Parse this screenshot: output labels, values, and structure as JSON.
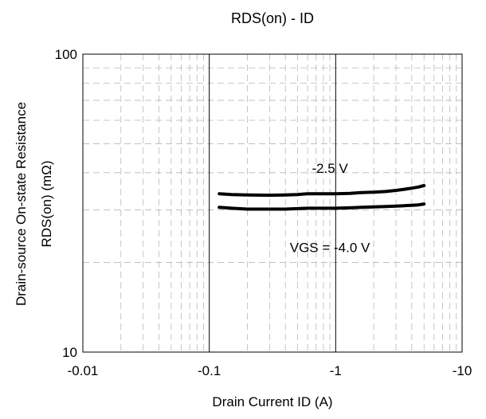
{
  "chart_data": {
    "type": "line",
    "title": "RDS(on) - ID",
    "xlabel": "Drain Current ID (A)",
    "ylabel_line1": "Drain-source On-state Resistance",
    "ylabel_line2": "RDS(on) (mΩ)",
    "x_scale": "log",
    "y_scale": "log",
    "xlim": [
      -0.01,
      -10
    ],
    "ylim": [
      10,
      100
    ],
    "x_ticks": [
      {
        "value": -0.01,
        "label": "-0.01"
      },
      {
        "value": -0.1,
        "label": "-0.1"
      },
      {
        "value": -1,
        "label": "-1"
      },
      {
        "value": -10,
        "label": "-10"
      }
    ],
    "y_ticks": [
      {
        "value": 10,
        "label": "10"
      },
      {
        "value": 100,
        "label": "100"
      }
    ],
    "grid": true,
    "series": [
      {
        "name": "-2.5 V",
        "color": "#000000",
        "x": [
          -0.12,
          -0.15,
          -0.2,
          -0.3,
          -0.4,
          -0.5,
          -0.6,
          -0.8,
          -1,
          -1.3,
          -1.6,
          -2,
          -2.5,
          -3,
          -3.5,
          -4,
          -4.5,
          -5
        ],
        "y": [
          34.0,
          33.8,
          33.7,
          33.6,
          33.7,
          33.8,
          34.0,
          34.0,
          34.0,
          34.1,
          34.3,
          34.4,
          34.6,
          34.9,
          35.2,
          35.5,
          35.8,
          36.2
        ]
      },
      {
        "name": "VGS = -4.0 V",
        "color": "#000000",
        "x": [
          -0.12,
          -0.15,
          -0.2,
          -0.3,
          -0.4,
          -0.5,
          -0.6,
          -0.8,
          -1,
          -1.3,
          -1.6,
          -2,
          -2.5,
          -3,
          -3.5,
          -4,
          -4.5,
          -5
        ],
        "y": [
          30.6,
          30.4,
          30.2,
          30.2,
          30.2,
          30.3,
          30.4,
          30.4,
          30.4,
          30.5,
          30.6,
          30.7,
          30.8,
          30.9,
          31.0,
          31.1,
          31.2,
          31.4
        ]
      }
    ],
    "annotations": [
      {
        "text": "-2.5 V",
        "x": -0.9,
        "y": 41.5
      },
      {
        "text": "VGS = -4.0 V",
        "x": -0.9,
        "y": 22.5
      }
    ]
  }
}
